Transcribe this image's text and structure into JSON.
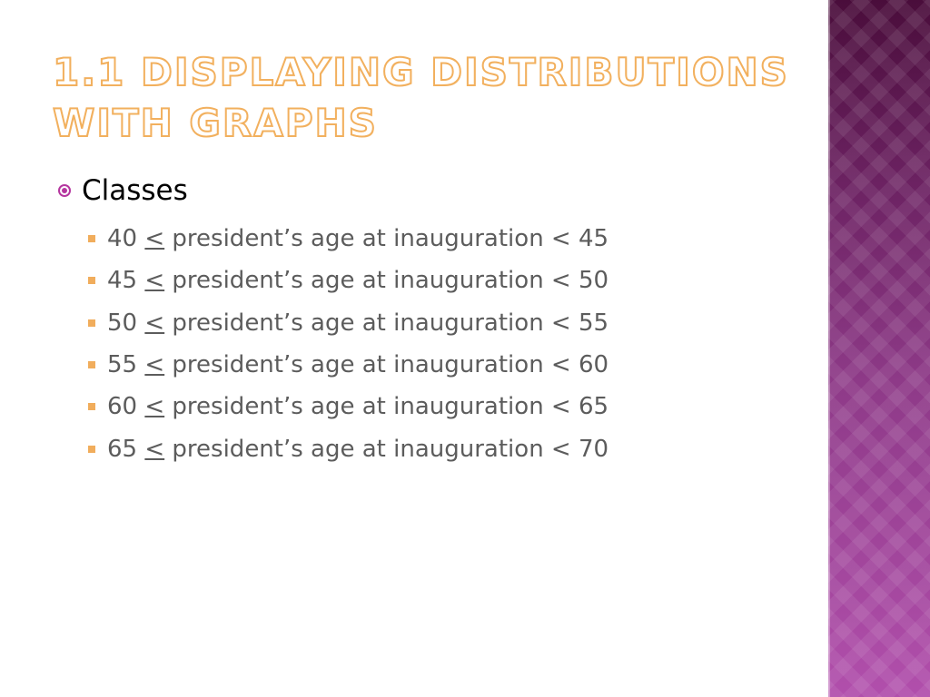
{
  "slide": {
    "title_lines": [
      "1.1 Displaying Distributions",
      "with Graphs"
    ],
    "bullet": "Classes",
    "items": [
      {
        "low": "40",
        "op": "<",
        "mid": " president’s age at inauguration < ",
        "high": "45"
      },
      {
        "low": "45",
        "op": "<",
        "mid": " president’s age at inauguration < ",
        "high": "50"
      },
      {
        "low": "50",
        "op": "<",
        "mid": " president’s age at inauguration < ",
        "high": "55"
      },
      {
        "low": "55",
        "op": "<",
        "mid": " president’s age at inauguration < ",
        "high": "60"
      },
      {
        "low": "60",
        "op": "<",
        "mid": " president’s age at inauguration < ",
        "high": "65"
      },
      {
        "low": "65",
        "op": "<",
        "mid": " president’s age at inauguration < ",
        "high": "70"
      }
    ]
  },
  "colors": {
    "title_outline": "#f2b05e",
    "bullet_level1": "#b5369f",
    "bullet_level2": "#f1ad5c",
    "side_panel": "#8e3a88"
  },
  "icons": {
    "level1_bullet": "circled-dot-icon",
    "level2_bullet": "square-bullet-icon"
  }
}
